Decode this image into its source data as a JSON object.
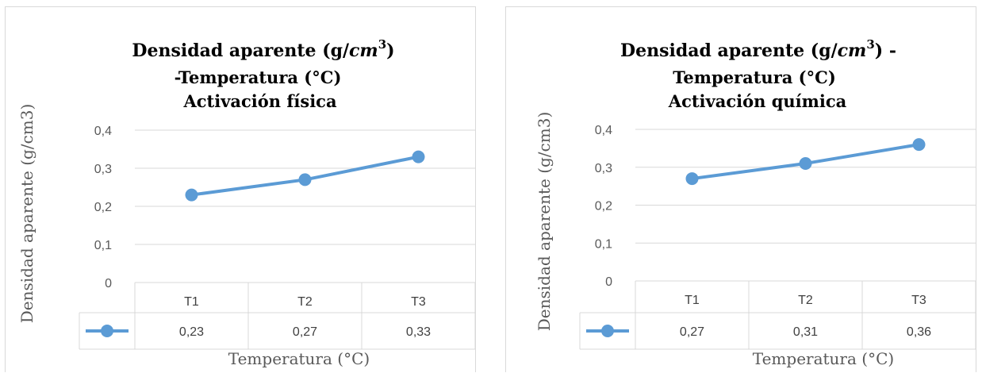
{
  "chart_data": [
    {
      "type": "line",
      "title_lines": [
        "Densidad aparente (g/",
        "-Temperatura  (°C)",
        "Activación física"
      ],
      "title_math": "cm",
      "title_sup": "3",
      "title_close": ")",
      "categories": [
        "T1",
        "T2",
        "T3"
      ],
      "series": [
        {
          "values": [
            0.23,
            0.27,
            0.33
          ]
        }
      ],
      "value_labels": [
        "0,23",
        "0,27",
        "0,33"
      ],
      "yticks": [
        "0",
        "0,1",
        "0,2",
        "0,3",
        "0,4"
      ],
      "ylim": [
        0,
        0.4
      ],
      "ylabel": "Densidad aparente (g/cm3)",
      "xlabel": "Temperatura (°C)",
      "grid": true,
      "data_table": true,
      "color": "#5b9bd5"
    },
    {
      "type": "line",
      "title_lines": [
        "Densidad aparente (g/",
        "Temperatura  (°C)",
        "Activación química"
      ],
      "title_math": "cm",
      "title_sup": "3",
      "title_close": ") -",
      "categories": [
        "T1",
        "T2",
        "T3"
      ],
      "series": [
        {
          "values": [
            0.27,
            0.31,
            0.36
          ]
        }
      ],
      "value_labels": [
        "0,27",
        "0,31",
        "0,36"
      ],
      "yticks": [
        "0",
        "0,1",
        "0,2",
        "0,3",
        "0,4"
      ],
      "ylim": [
        0,
        0.4
      ],
      "ylabel": "Densidad aparente (g/cm3)",
      "xlabel": "Temperatura (°C)",
      "grid": true,
      "data_table": true,
      "color": "#5b9bd5"
    }
  ]
}
